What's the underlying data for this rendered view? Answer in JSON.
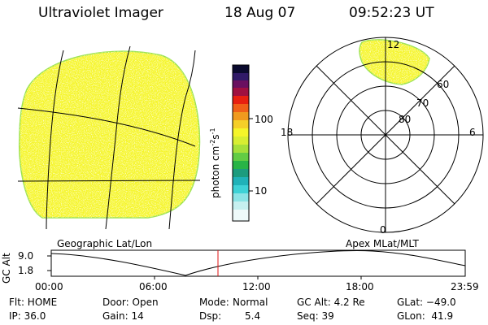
{
  "header": {
    "title": "Ultraviolet Imager",
    "date": "18 Aug 07",
    "time": "09:52:23 UT"
  },
  "colorbar": {
    "label": "photon cm",
    "label_exp1": "-2",
    "label_s": "s",
    "label_exp2": "-1",
    "ticks": [
      "100",
      "10"
    ]
  },
  "polar_plot": {
    "mlt_labels": [
      "12",
      "18",
      "6",
      "0"
    ],
    "lat_labels": [
      "60",
      "70",
      "80"
    ]
  },
  "panel_labels": {
    "left": "Geographic Lat/Lon",
    "right": "Apex MLat/MLT"
  },
  "altitude_plot": {
    "ylabel": "GC Alt",
    "yticks": [
      "9.0",
      "1.8"
    ],
    "xticks": [
      "00:00",
      "06:00",
      "12:00",
      "18:00",
      "23:59"
    ]
  },
  "status": {
    "flt": "Flt: HOME",
    "ip": "IP: 36.0",
    "door": "Door: Open",
    "gain": "Gain: 14",
    "mode_label": "Mode:",
    "mode_value": "Normal",
    "dsp_label": "Dsp:",
    "dsp_value": "5.4",
    "gcalt": "GC Alt: 4.2 Re",
    "seq": "Seq: 39",
    "glat": "GLat: −49.0",
    "glon": "GLon:  41.9"
  },
  "colors": {
    "fill": "#f5f52a",
    "rim": "#9ae24c",
    "marker": "#e01010"
  }
}
